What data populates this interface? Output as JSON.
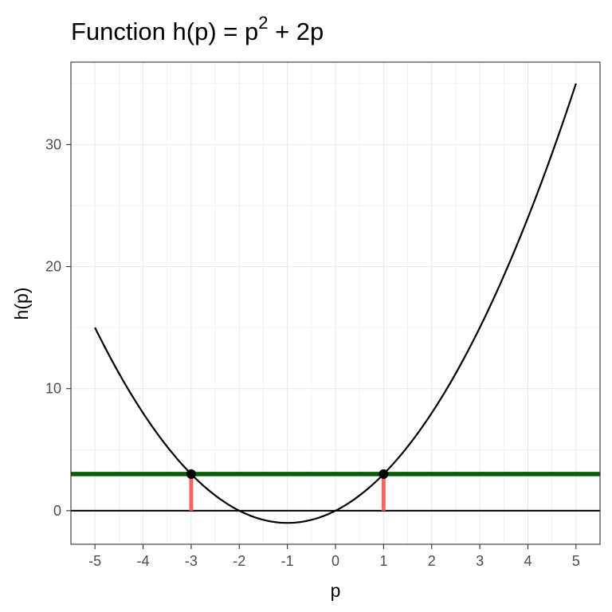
{
  "chart_data": {
    "type": "line",
    "title": {
      "prefix": "Function h(p) = p",
      "exponent": "2",
      "suffix": " + 2p"
    },
    "xlabel": "p",
    "ylabel": "h(p)",
    "xlim": [
      -5.5,
      5.5
    ],
    "ylim": [
      -2.75,
      36.75
    ],
    "x_ticks": [
      -5,
      -4,
      -3,
      -2,
      -1,
      0,
      1,
      2,
      3,
      4,
      5
    ],
    "x_tick_labels": [
      "-5",
      "-4",
      "-3",
      "-2",
      "-1",
      "0",
      "1",
      "2",
      "3",
      "4",
      "5"
    ],
    "y_ticks": [
      0,
      10,
      20,
      30
    ],
    "y_tick_labels": [
      "0",
      "10",
      "20",
      "30"
    ],
    "grid": true,
    "curve": {
      "x": [
        -5,
        -4.5,
        -4,
        -3.5,
        -3,
        -2.5,
        -2,
        -1.5,
        -1,
        -0.5,
        0,
        0.5,
        1,
        1.5,
        2,
        2.5,
        3,
        3.5,
        4,
        4.5,
        5
      ],
      "y": [
        15,
        11.25,
        8,
        5.25,
        3,
        1.25,
        0,
        -0.75,
        -1,
        -0.75,
        0,
        1.25,
        3,
        5.25,
        8,
        11.25,
        15,
        19.25,
        24,
        29.25,
        35
      ]
    },
    "reference_lines": [
      {
        "y": 0,
        "color": "#000000"
      },
      {
        "y": 3,
        "color": "#0b5a0b"
      }
    ],
    "segments": [
      {
        "x": -3,
        "y_from": 0,
        "y_to": 3,
        "color": "#f8645f"
      },
      {
        "x": 1,
        "y_from": 0,
        "y_to": 3,
        "color": "#f8645f"
      }
    ],
    "points": [
      {
        "x": -3,
        "y": 3
      },
      {
        "x": 1,
        "y": 3
      }
    ]
  }
}
